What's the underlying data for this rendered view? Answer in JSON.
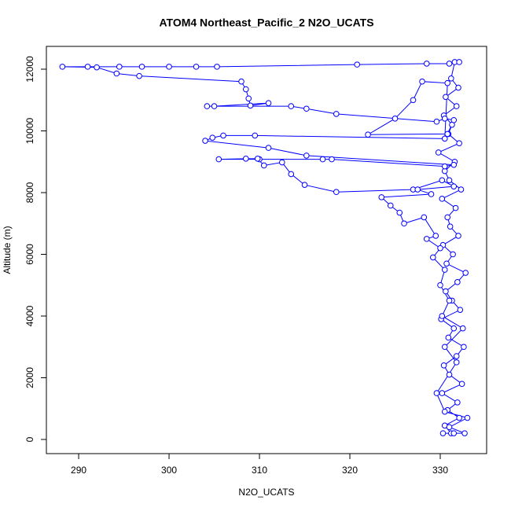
{
  "chart_data": {
    "type": "line",
    "markers": true,
    "title": "ATOM4 Northeast_Pacific_2 N2O_UCATS",
    "x_label": "N2O_UCATS",
    "y_label": "Altitude (m)",
    "color": "#0000ff",
    "xlim": [
      286.43,
      335.13
    ],
    "ylim": [
      -459,
      12739
    ],
    "xticks": [
      290,
      300,
      310,
      320,
      330
    ],
    "yticks": [
      0,
      2000,
      4000,
      6000,
      8000,
      10000,
      12000
    ],
    "x": [
      331.2,
      330.5,
      332.1,
      330.8,
      331.9,
      330.2,
      332.4,
      331.0,
      330.4,
      331.8,
      332.6,
      330.9,
      331.5,
      330.1,
      332.2,
      331.3,
      330.6,
      331.9,
      332.8,
      330.7,
      331.4,
      330.3,
      332.0,
      331.1,
      330.8,
      331.7,
      330.2,
      332.3,
      331.0,
      330.5,
      331.6,
      329.8,
      332.1,
      330.9,
      331.3,
      330.4,
      331.8,
      330.6,
      332.0,
      331.2,
      331.6,
      332.1,
      331.0,
      328.5,
      320.8,
      305.3,
      303.0,
      300.0,
      297.0,
      294.5,
      291.0,
      288.2,
      292.0,
      294.2,
      296.7,
      308.0,
      308.5,
      308.8,
      309.0,
      311.0,
      305.0,
      304.2,
      313.5,
      315.2,
      318.5,
      329.6,
      330.5,
      331.5,
      330.8,
      322.0,
      325.0,
      327.0,
      328.0,
      330.8,
      330.5,
      309.5,
      306.0,
      304.8,
      304.0,
      311.0,
      315.2,
      331.5,
      330.5,
      318.0,
      317.0,
      310.0,
      305.5,
      308.5,
      309.8,
      310.5,
      312.5,
      313.5,
      315.0,
      318.5,
      327.0,
      330.2,
      331.5,
      327.5,
      329.0,
      323.5,
      324.5,
      325.5,
      326.0,
      328.2,
      329.5,
      328.5,
      330.0,
      329.2,
      330.5,
      330.0,
      331.0,
      330.2,
      332.5,
      330.5,
      331.8,
      329.6,
      330.5,
      333.0,
      331.0,
      332.7,
      330.3,
      331.5
    ],
    "y": [
      200,
      450,
      700,
      950,
      1200,
      1500,
      1800,
      2100,
      2400,
      2700,
      3000,
      3300,
      3600,
      3900,
      4200,
      4500,
      4800,
      5100,
      5400,
      5700,
      6000,
      6300,
      6600,
      6900,
      7200,
      7500,
      7800,
      8100,
      8400,
      8700,
      9000,
      9300,
      9600,
      9900,
      10200,
      10500,
      10800,
      11100,
      11400,
      11700,
      12230,
      12230,
      12180,
      12180,
      12150,
      12080,
      12080,
      12080,
      12080,
      12080,
      12080,
      12080,
      12060,
      11860,
      11780,
      11600,
      11350,
      11050,
      10820,
      10900,
      10800,
      10800,
      10800,
      10720,
      10550,
      10300,
      10400,
      10350,
      9900,
      9880,
      10400,
      11000,
      11600,
      11550,
      9750,
      9850,
      9850,
      9780,
      9680,
      9450,
      9200,
      8900,
      8850,
      9080,
      9080,
      9080,
      9080,
      9100,
      9100,
      8880,
      8980,
      8600,
      8250,
      8020,
      8100,
      8400,
      8200,
      8100,
      7950,
      7850,
      7580,
      7350,
      7000,
      7200,
      6600,
      6500,
      6200,
      5900,
      5500,
      5000,
      4500,
      4000,
      3600,
      3000,
      2500,
      1500,
      900,
      700,
      400,
      200,
      200,
      200
    ]
  }
}
